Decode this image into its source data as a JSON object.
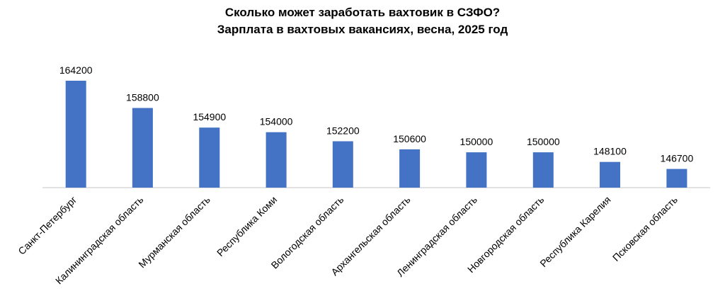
{
  "chart_data": {
    "type": "bar",
    "title": "Сколько может заработать вахтовик в СЗФО?",
    "subtitle": "Зарплата в вахтовых вакансиях, весна, 2025 год",
    "categories": [
      "Санкт-Петербург",
      "Калининградская область",
      "Мурманская область",
      "Республика Коми",
      "Вологодская область",
      "Архангельская область",
      "Ленинградская область",
      "Новгородская область",
      "Республика Карелия",
      "Псковская область"
    ],
    "values": [
      164200,
      158800,
      154900,
      154000,
      152200,
      150600,
      150000,
      150000,
      148100,
      146700
    ],
    "data_labels": [
      "164200",
      "158800",
      "154900",
      "154000",
      "152200",
      "150600",
      "150000",
      "150000",
      "148100",
      "146700"
    ],
    "ylim": [
      143000,
      166000
    ],
    "grid": false,
    "legend": "none",
    "bar_color": "#4472C4",
    "axis_color": "#D9D9D9"
  }
}
